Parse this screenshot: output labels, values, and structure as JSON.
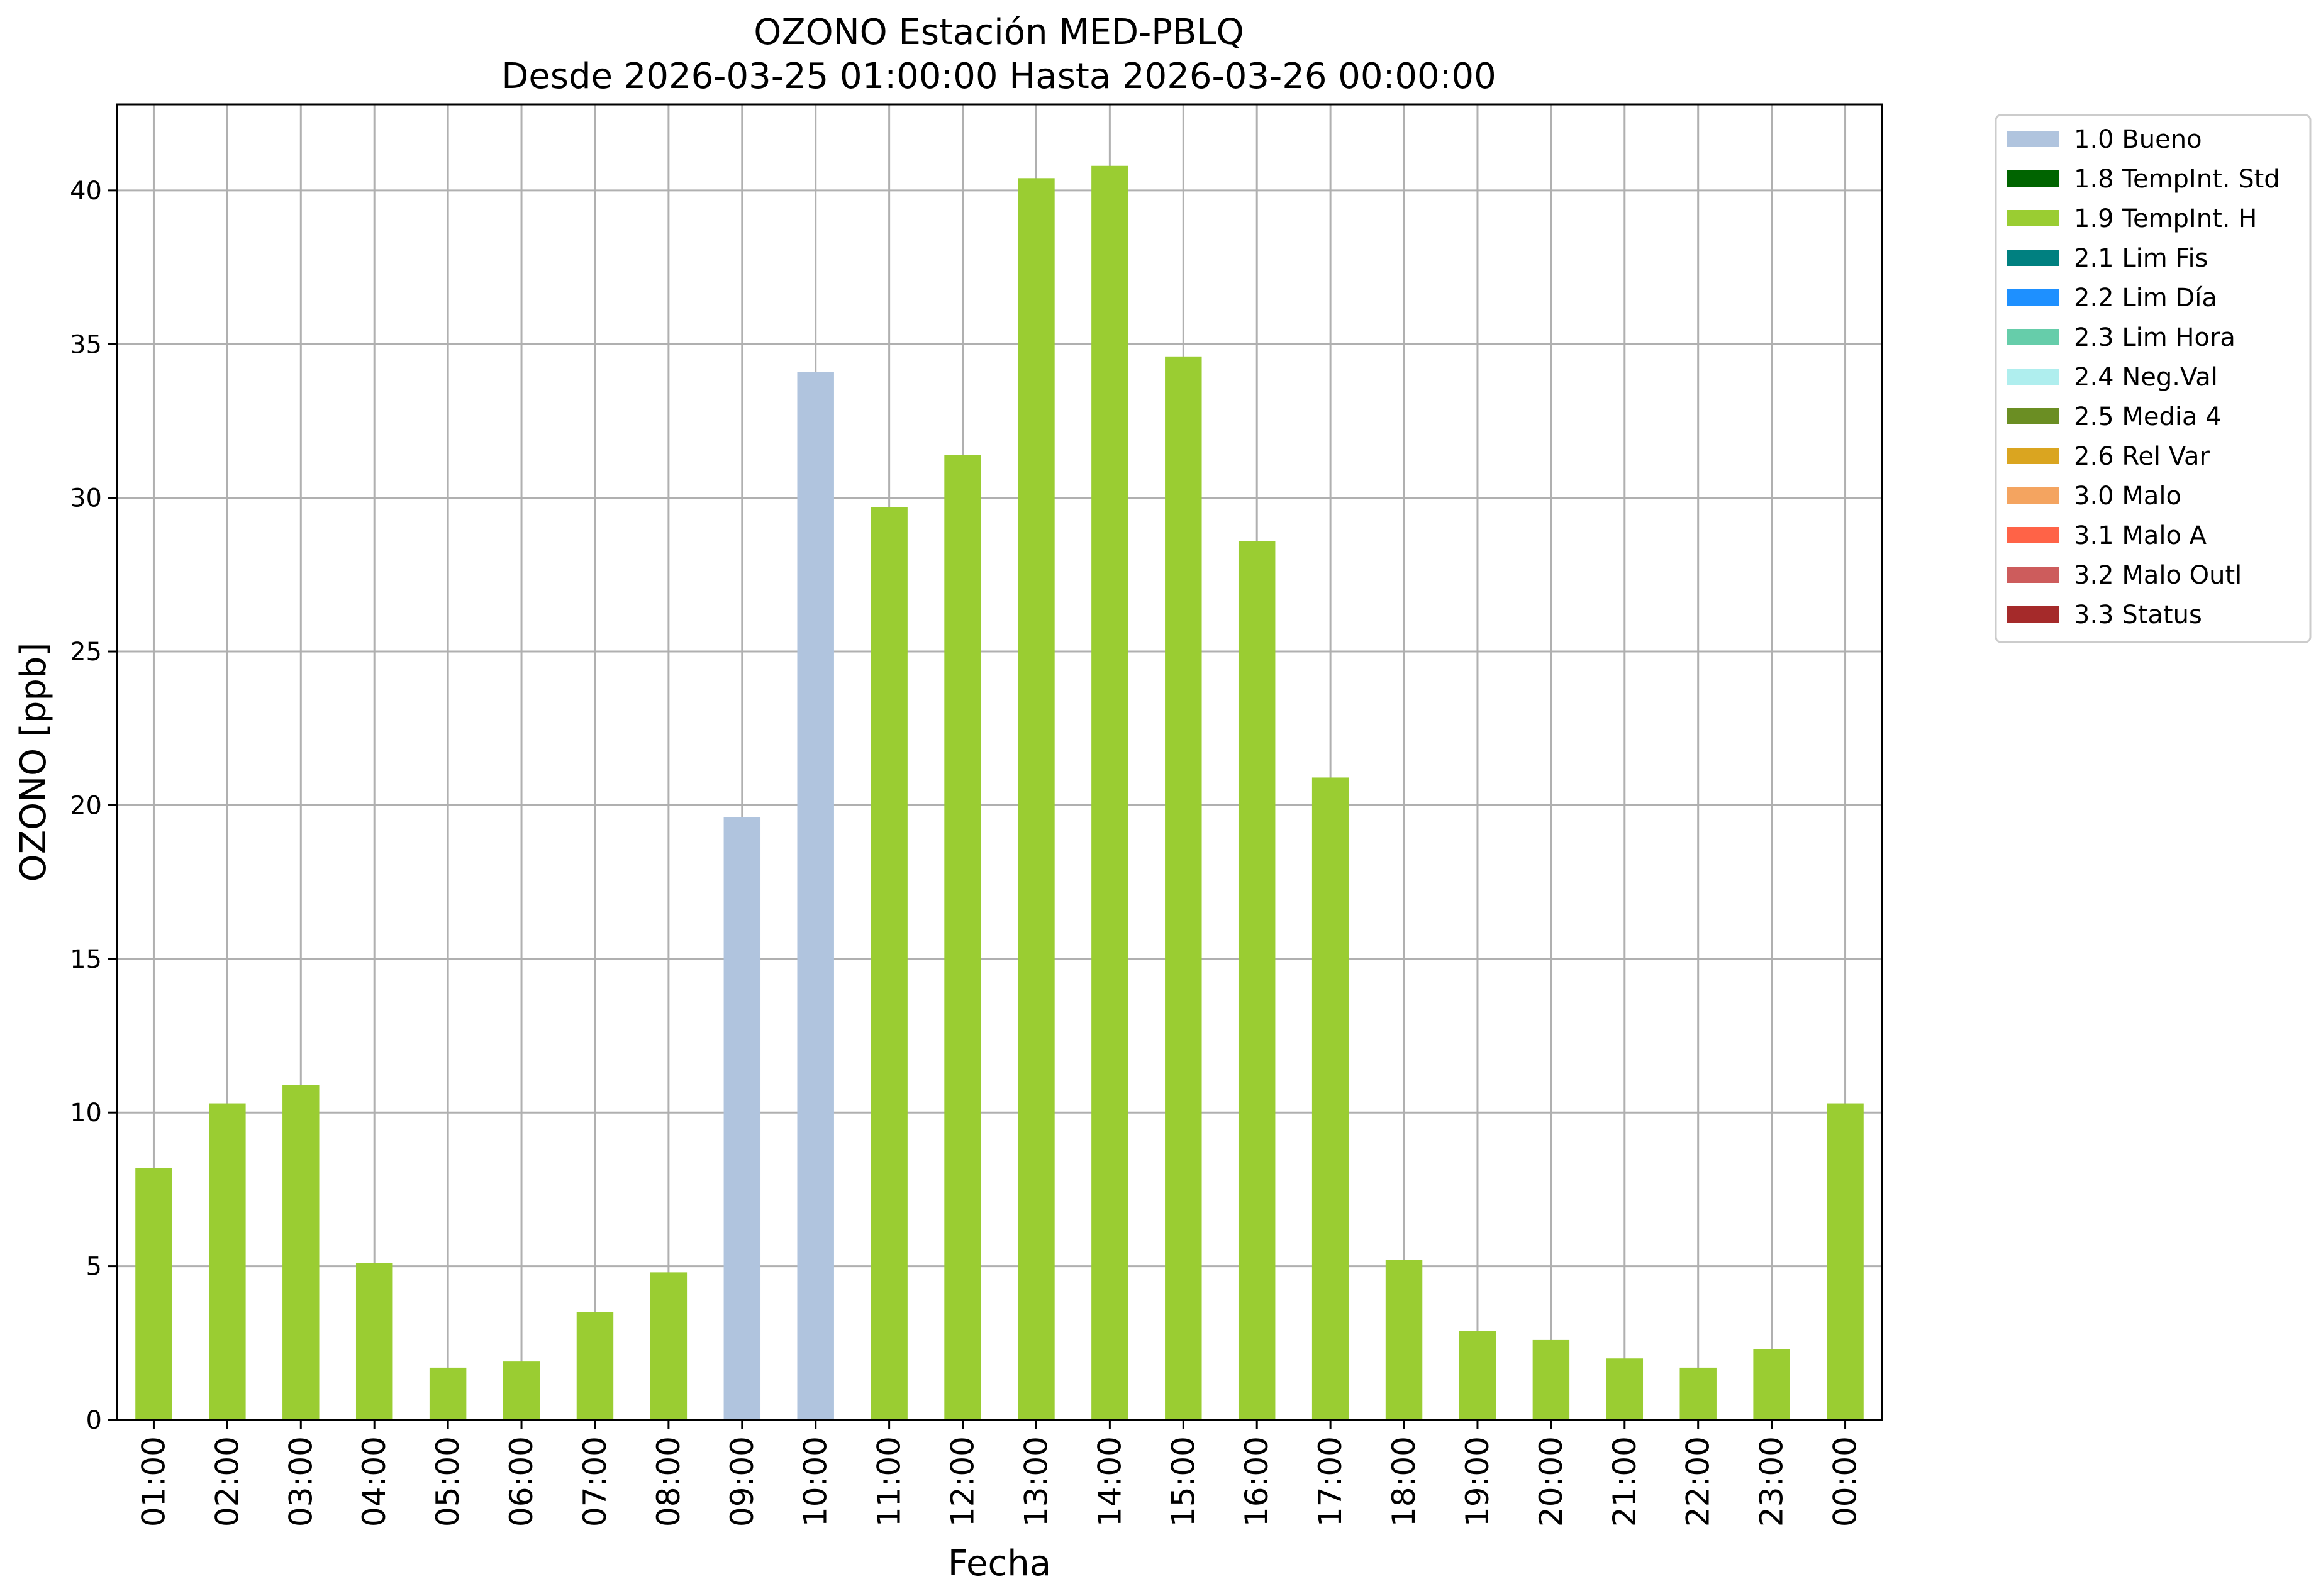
{
  "chart_data": {
    "type": "bar",
    "title": "OZONO Estación MED-PBLQ",
    "subtitle": "Desde 2026-03-25 01:00:00 Hasta 2026-03-26 00:00:00",
    "xlabel": "Fecha",
    "ylabel": "OZONO [ppb]",
    "ylim": [
      0,
      42.8
    ],
    "yticks": [
      0,
      5,
      10,
      15,
      20,
      25,
      30,
      35,
      40
    ],
    "grid": true,
    "legend_position": "outside-right-top",
    "categories": [
      "01:00",
      "02:00",
      "03:00",
      "04:00",
      "05:00",
      "06:00",
      "07:00",
      "08:00",
      "09:00",
      "10:00",
      "11:00",
      "12:00",
      "13:00",
      "14:00",
      "15:00",
      "16:00",
      "17:00",
      "18:00",
      "19:00",
      "20:00",
      "21:00",
      "22:00",
      "23:00",
      "00:00"
    ],
    "values": [
      8.2,
      10.3,
      10.9,
      5.1,
      1.7,
      1.9,
      3.5,
      4.8,
      19.6,
      34.1,
      29.7,
      31.4,
      40.4,
      40.8,
      34.6,
      28.6,
      20.9,
      5.2,
      2.9,
      2.6,
      2.0,
      1.7,
      2.3,
      10.3
    ],
    "bar_flags": [
      "1.9 TempInt. H",
      "1.9 TempInt. H",
      "1.9 TempInt. H",
      "1.9 TempInt. H",
      "1.9 TempInt. H",
      "1.9 TempInt. H",
      "1.9 TempInt. H",
      "1.9 TempInt. H",
      "1.0 Bueno",
      "1.0 Bueno",
      "1.9 TempInt. H",
      "1.9 TempInt. H",
      "1.9 TempInt. H",
      "1.9 TempInt. H",
      "1.9 TempInt. H",
      "1.9 TempInt. H",
      "1.9 TempInt. H",
      "1.9 TempInt. H",
      "1.9 TempInt. H",
      "1.9 TempInt. H",
      "1.9 TempInt. H",
      "1.9 TempInt. H",
      "1.9 TempInt. H",
      "1.9 TempInt. H"
    ],
    "legend": [
      {
        "label": "1.0 Bueno",
        "color": "#b0c4de"
      },
      {
        "label": "1.8 TempInt. Std",
        "color": "#006400"
      },
      {
        "label": "1.9 TempInt. H",
        "color": "#9acd32"
      },
      {
        "label": "2.1 Lim Fis",
        "color": "#008080"
      },
      {
        "label": "2.2 Lim Día",
        "color": "#1e90ff"
      },
      {
        "label": "2.3 Lim Hora",
        "color": "#66cdaa"
      },
      {
        "label": "2.4 Neg.Val",
        "color": "#afeeee"
      },
      {
        "label": "2.5 Media 4",
        "color": "#6b8e23"
      },
      {
        "label": "2.6 Rel Var",
        "color": "#daa520"
      },
      {
        "label": "3.0 Malo",
        "color": "#f4a460"
      },
      {
        "label": "3.1 Malo A",
        "color": "#ff6347"
      },
      {
        "label": "3.2 Malo Outl",
        "color": "#cd5c5c"
      },
      {
        "label": "3.3 Status",
        "color": "#a52a2a"
      }
    ]
  }
}
